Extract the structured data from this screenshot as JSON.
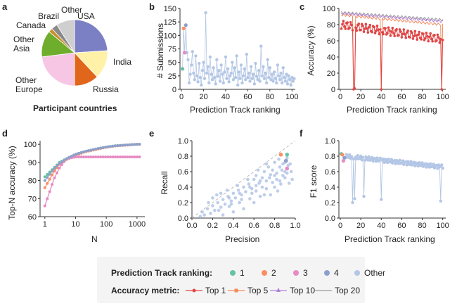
{
  "colors": {
    "rank1": "#66c2a5",
    "rank2": "#fc8d62",
    "rank3": "#e78ac3",
    "rank4": "#8da0cb",
    "other": "#b3c6e5",
    "top1": "#e04646",
    "top5": "#f08a5d",
    "top10": "#b07fd6",
    "top20": "#9a9a9a",
    "legend_bg": "#f4f4f4"
  },
  "chart_data": [
    {
      "id": "a",
      "panel_label": "a",
      "type": "pie",
      "title": "Participant countries",
      "slices": [
        {
          "label": "USA",
          "value": 24,
          "color": "#7b7fc4"
        },
        {
          "label": "India",
          "value": 14,
          "color": "#fff2a8"
        },
        {
          "label": "Russia",
          "value": 12,
          "color": "#e0661c"
        },
        {
          "label": "Other Europe",
          "value": 23,
          "color": "#f7c6e4"
        },
        {
          "label": "Other Asia",
          "value": 13,
          "color": "#6fad2c"
        },
        {
          "label": "Canada",
          "value": 2,
          "color": "#c7902a"
        },
        {
          "label": "Brazil",
          "value": 3,
          "color": "#8a8a8a"
        },
        {
          "label": "Other",
          "value": 9,
          "color": "#cfcfcf"
        }
      ]
    },
    {
      "id": "b",
      "panel_label": "b",
      "type": "scatter",
      "xlabel": "Prediction Track ranking",
      "ylabel": "# Submissions",
      "xlim": [
        0,
        103
      ],
      "ylim": [
        0,
        150
      ],
      "xticks": [
        0,
        20,
        40,
        60,
        80,
        100
      ],
      "yticks": [
        0,
        25,
        50,
        75,
        100,
        125,
        150
      ],
      "highlight": [
        {
          "rank": 1,
          "value": 38
        },
        {
          "rank": 2,
          "value": 113
        },
        {
          "rank": 3,
          "value": 68
        },
        {
          "rank": 4,
          "value": 119
        }
      ],
      "values": [
        68,
        55,
        12,
        28,
        45,
        70,
        30,
        18,
        62,
        25,
        14,
        48,
        22,
        8,
        35,
        50,
        20,
        142,
        30,
        42,
        12,
        60,
        28,
        18,
        40,
        22,
        10,
        55,
        24,
        35,
        15,
        45,
        28,
        12,
        32,
        60,
        20,
        38,
        14,
        25,
        30,
        50,
        18,
        40,
        22,
        62,
        8,
        32,
        20,
        45,
        12,
        25,
        38,
        18,
        65,
        22,
        30,
        15,
        42,
        20,
        28,
        10,
        48,
        24,
        18,
        35,
        15,
        80,
        25,
        42,
        20,
        30,
        12,
        55,
        22,
        40,
        18,
        28,
        15,
        32,
        20,
        12,
        45,
        25,
        18,
        30,
        12,
        40,
        22,
        15,
        28,
        10,
        25,
        18,
        8,
        22,
        15,
        20
      ]
    },
    {
      "id": "c",
      "panel_label": "c",
      "type": "line",
      "xlabel": "Prediction Track ranking",
      "ylabel": "Accuracy (%)",
      "xlim": [
        0,
        103
      ],
      "ylim": [
        0,
        100
      ],
      "xticks": [
        0,
        20,
        40,
        60,
        80,
        100
      ],
      "yticks": [
        0,
        20,
        40,
        60,
        80,
        100
      ],
      "series": [
        {
          "name": "Top 20",
          "start": 95,
          "end": 86,
          "dips": []
        },
        {
          "name": "Top 10",
          "start": 94,
          "end": 84,
          "dips": []
        },
        {
          "name": "Top 5",
          "start": 92,
          "end": 80,
          "dips": [
            {
              "rank": 13,
              "value": 0
            },
            {
              "rank": 14,
              "value": 1
            },
            {
              "rank": 40,
              "value": 0
            },
            {
              "rank": 99,
              "value": 0
            }
          ]
        },
        {
          "name": "Top 1",
          "start": 80,
          "end": 62,
          "dips": [
            {
              "rank": 13,
              "value": 0
            },
            {
              "rank": 14,
              "value": 1
            },
            {
              "rank": 40,
              "value": 0
            },
            {
              "rank": 99,
              "value": 0
            }
          ]
        }
      ]
    },
    {
      "id": "d",
      "panel_label": "d",
      "type": "line",
      "xlabel": "N",
      "ylabel": "Top-N accuracy (%)",
      "xscale": "log",
      "xlim": [
        0.7,
        1800
      ],
      "ylim": [
        60,
        102
      ],
      "xticks": [
        1,
        10,
        100,
        1000
      ],
      "xticklabels": [
        "1",
        "10",
        "100",
        "1000"
      ],
      "yticks": [
        60,
        70,
        80,
        90,
        100
      ],
      "x": [
        1,
        2,
        3,
        5,
        10,
        20,
        50,
        100,
        200,
        500,
        1000,
        1200
      ],
      "series": [
        {
          "name": "1",
          "values": [
            82,
            87,
            90,
            92,
            94.5,
            96,
            97.5,
            98.5,
            99.2,
            99.7,
            100,
            100
          ]
        },
        {
          "name": "2",
          "values": [
            76,
            85,
            89,
            91.5,
            94,
            95.8,
            97.3,
            98.4,
            99.1,
            99.6,
            100,
            100
          ]
        },
        {
          "name": "3",
          "values": [
            66,
            81,
            87,
            92,
            93,
            93,
            93,
            93,
            93,
            93,
            93,
            93
          ]
        },
        {
          "name": "4",
          "values": [
            80,
            86.5,
            89.5,
            92,
            94.5,
            96,
            97.6,
            98.5,
            99.2,
            99.7,
            100,
            100
          ]
        }
      ]
    },
    {
      "id": "e",
      "panel_label": "e",
      "type": "scatter",
      "xlabel": "Precision",
      "ylabel": "Recall",
      "xlim": [
        0,
        1
      ],
      "ylim": [
        0,
        1
      ],
      "xticks": [
        0,
        0.2,
        0.4,
        0.6,
        0.8,
        1.0
      ],
      "xticklabels": [
        "0.0",
        "0.2",
        "0.4",
        "0.6",
        "0.8",
        "1.0"
      ],
      "yticks": [
        0,
        0.2,
        0.4,
        0.6,
        0.8,
        1.0
      ],
      "yticklabels": [
        "0.0",
        "0.2",
        "0.4",
        "0.6",
        "0.8",
        "1.0"
      ],
      "highlight": [
        {
          "rank": 1,
          "x": 0.92,
          "y": 0.82
        },
        {
          "rank": 2,
          "x": 0.86,
          "y": 0.82
        },
        {
          "rank": 3,
          "x": 0.92,
          "y": 0.64
        },
        {
          "rank": 4,
          "x": 0.91,
          "y": 0.74
        }
      ],
      "points": [
        [
          0.92,
          0.78
        ],
        [
          0.9,
          0.72
        ],
        [
          0.88,
          0.7
        ],
        [
          0.93,
          0.68
        ],
        [
          0.85,
          0.66
        ],
        [
          0.87,
          0.62
        ],
        [
          0.9,
          0.6
        ],
        [
          0.82,
          0.58
        ],
        [
          0.78,
          0.62
        ],
        [
          0.8,
          0.55
        ],
        [
          0.75,
          0.52
        ],
        [
          0.7,
          0.6
        ],
        [
          0.72,
          0.48
        ],
        [
          0.68,
          0.52
        ],
        [
          0.65,
          0.45
        ],
        [
          0.6,
          0.5
        ],
        [
          0.62,
          0.42
        ],
        [
          0.55,
          0.44
        ],
        [
          0.58,
          0.38
        ],
        [
          0.5,
          0.4
        ],
        [
          0.52,
          0.34
        ],
        [
          0.45,
          0.36
        ],
        [
          0.48,
          0.3
        ],
        [
          0.4,
          0.32
        ],
        [
          0.42,
          0.26
        ],
        [
          0.35,
          0.28
        ],
        [
          0.38,
          0.22
        ],
        [
          0.3,
          0.24
        ],
        [
          0.32,
          0.18
        ],
        [
          0.25,
          0.2
        ],
        [
          0.28,
          0.14
        ],
        [
          0.2,
          0.16
        ],
        [
          0.22,
          0.1
        ],
        [
          0.15,
          0.12
        ],
        [
          0.18,
          0.06
        ],
        [
          0.1,
          0.08
        ],
        [
          0.12,
          0.04
        ],
        [
          0.08,
          0.02
        ],
        [
          0.3,
          0.04
        ],
        [
          0.4,
          0.08
        ],
        [
          0.5,
          0.12
        ],
        [
          0.6,
          0.2
        ],
        [
          0.7,
          0.3
        ],
        [
          0.8,
          0.4
        ],
        [
          0.85,
          0.48
        ],
        [
          0.88,
          0.55
        ],
        [
          0.95,
          0.7
        ],
        [
          0.96,
          0.6
        ],
        [
          0.97,
          0.5
        ],
        [
          0.94,
          0.45
        ],
        [
          0.83,
          0.35
        ],
        [
          0.76,
          0.3
        ],
        [
          0.66,
          0.28
        ],
        [
          0.56,
          0.25
        ],
        [
          0.46,
          0.2
        ],
        [
          0.36,
          0.15
        ],
        [
          0.26,
          0.1
        ],
        [
          0.64,
          0.62
        ],
        [
          0.72,
          0.7
        ],
        [
          0.8,
          0.72
        ],
        [
          0.84,
          0.76
        ],
        [
          0.74,
          0.66
        ],
        [
          0.62,
          0.55
        ],
        [
          0.54,
          0.5
        ],
        [
          0.44,
          0.42
        ],
        [
          0.34,
          0.36
        ],
        [
          0.24,
          0.3
        ],
        [
          0.9,
          0.52
        ],
        [
          0.92,
          0.58
        ],
        [
          0.86,
          0.44
        ],
        [
          0.78,
          0.46
        ],
        [
          0.68,
          0.4
        ],
        [
          0.58,
          0.32
        ],
        [
          0.48,
          0.24
        ],
        [
          0.38,
          0.18
        ],
        [
          0.62,
          0.35
        ],
        [
          0.72,
          0.38
        ],
        [
          0.82,
          0.5
        ],
        [
          0.76,
          0.56
        ],
        [
          0.66,
          0.48
        ],
        [
          0.56,
          0.4
        ],
        [
          0.46,
          0.32
        ],
        [
          0.36,
          0.26
        ],
        [
          0.16,
          0.2
        ],
        [
          0.2,
          0.26
        ],
        [
          0.28,
          0.32
        ]
      ]
    },
    {
      "id": "f",
      "panel_label": "f",
      "type": "line",
      "xlabel": "Prediction Track ranking",
      "ylabel": "F1 score",
      "xlim": [
        0,
        103
      ],
      "ylim": [
        0,
        1
      ],
      "xticks": [
        0,
        20,
        40,
        60,
        80,
        100
      ],
      "yticks": [
        0,
        0.2,
        0.4,
        0.6,
        0.8,
        1.0
      ],
      "yticklabels": [
        "0.0",
        "0.2",
        "0.4",
        "0.6",
        "0.8",
        "1.0"
      ],
      "highlight": [
        {
          "rank": 1,
          "value": 0.83
        },
        {
          "rank": 2,
          "value": 0.82
        },
        {
          "rank": 3,
          "value": 0.74
        },
        {
          "rank": 4,
          "value": 0.78
        }
      ],
      "start": 0.8,
      "end": 0.66,
      "dips": [
        {
          "rank": 12,
          "value": 0.2
        },
        {
          "rank": 14,
          "value": 0.25
        },
        {
          "rank": 23,
          "value": 0.28
        },
        {
          "rank": 40,
          "value": 0.24
        },
        {
          "rank": 98,
          "value": 0.22
        }
      ]
    }
  ],
  "legend": {
    "ranking_title": "Prediction Track ranking:",
    "ranking_items": [
      "1",
      "2",
      "3",
      "4",
      "Other"
    ],
    "metric_title": "Accuracy metric:",
    "metric_items": [
      "Top 1",
      "Top 5",
      "Top 10",
      "Top 20"
    ]
  }
}
